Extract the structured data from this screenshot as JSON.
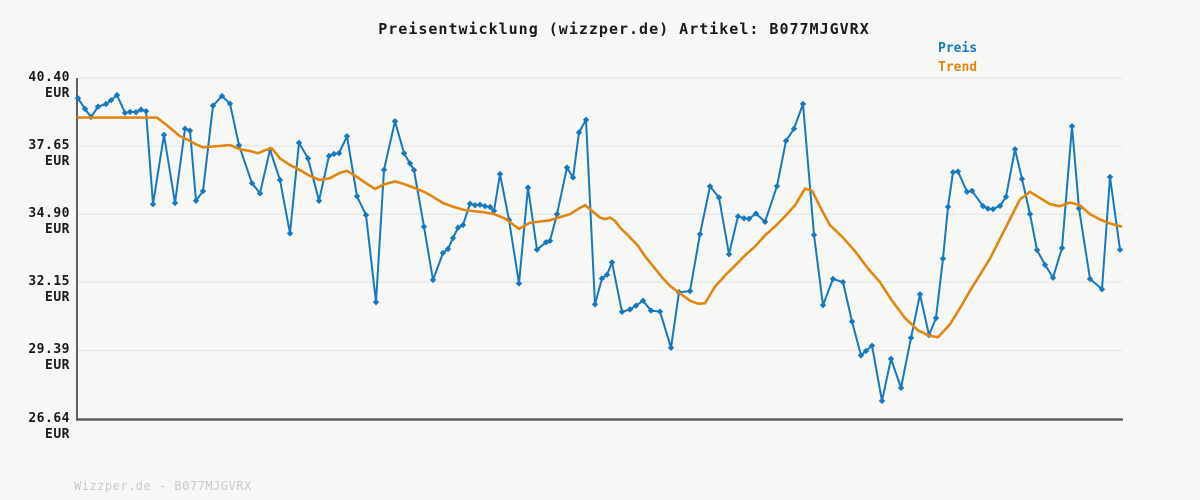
{
  "title": "Preisentwicklung (wizzper.de) Artikel: B077MJGVRX",
  "legend": {
    "preis": "Preis",
    "trend": "Trend"
  },
  "footer": "Wizzper.de - B077MJGVRX",
  "colors": {
    "preis": "#1878be",
    "trend": "#e1870f",
    "grid": "#e6e6e6",
    "axis": "#5f5f5f",
    "background": "#f7f7f6",
    "title_text": "#1a1a1a",
    "tick_text": "#1a1a1a",
    "footer_text": "#c9c9c9"
  },
  "chart_data": {
    "type": "line",
    "title": "Preisentwicklung (wizzper.de) Artikel: B077MJGVRX",
    "xlabel": "",
    "ylabel": "EUR",
    "x_axis_note": "time axis, unlabeled in chart; x given as plot pixel position",
    "ylim": [
      26.64,
      40.4
    ],
    "grid": "horizontal",
    "legend_position": "top-right",
    "yticks": [
      "40.40 EUR",
      "37.65 EUR",
      "34.90 EUR",
      "32.15 EUR",
      "29.39 EUR",
      "26.64 EUR"
    ],
    "ytick_values": [
      40.4,
      37.65,
      34.9,
      32.15,
      29.39,
      26.64
    ],
    "series": [
      {
        "name": "Preis",
        "color": "#1878be",
        "marker": "diamond",
        "line_width": 2,
        "points": [
          [
            78,
            39.58
          ],
          [
            85,
            39.15
          ],
          [
            91,
            38.82
          ],
          [
            98,
            39.24
          ],
          [
            106,
            39.35
          ],
          [
            111,
            39.5
          ],
          [
            117,
            39.71
          ],
          [
            125,
            38.99
          ],
          [
            130,
            39.03
          ],
          [
            136,
            39.02
          ],
          [
            141,
            39.12
          ],
          [
            146,
            39.06
          ],
          [
            153,
            35.3
          ],
          [
            164,
            38.1
          ],
          [
            175,
            35.35
          ],
          [
            185,
            38.35
          ],
          [
            190,
            38.27
          ],
          [
            196,
            35.44
          ],
          [
            203,
            35.83
          ],
          [
            213,
            39.28
          ],
          [
            222,
            39.67
          ],
          [
            230,
            39.36
          ],
          [
            239,
            37.68
          ],
          [
            252,
            36.15
          ],
          [
            260,
            35.74
          ],
          [
            270,
            37.5
          ],
          [
            280,
            36.28
          ],
          [
            290,
            34.12
          ],
          [
            299,
            37.78
          ],
          [
            308,
            37.15
          ],
          [
            319,
            35.44
          ],
          [
            329,
            37.25
          ],
          [
            334,
            37.33
          ],
          [
            339,
            37.36
          ],
          [
            347,
            38.05
          ],
          [
            357,
            35.62
          ],
          [
            366,
            34.86
          ],
          [
            376,
            31.34
          ],
          [
            384,
            36.69
          ],
          [
            395,
            38.65
          ],
          [
            404,
            37.36
          ],
          [
            410,
            36.95
          ],
          [
            414,
            36.68
          ],
          [
            424,
            34.39
          ],
          [
            433,
            32.24
          ],
          [
            443,
            33.33
          ],
          [
            448,
            33.49
          ],
          [
            453,
            33.93
          ],
          [
            458,
            34.35
          ],
          [
            463,
            34.46
          ],
          [
            470,
            35.32
          ],
          [
            475,
            35.26
          ],
          [
            480,
            35.28
          ],
          [
            485,
            35.22
          ],
          [
            490,
            35.19
          ],
          [
            494,
            35.03
          ],
          [
            500,
            36.52
          ],
          [
            509,
            34.66
          ],
          [
            519,
            32.1
          ],
          [
            528,
            35.97
          ],
          [
            537,
            33.46
          ],
          [
            546,
            33.76
          ],
          [
            550,
            33.82
          ],
          [
            557,
            34.9
          ],
          [
            567,
            36.78
          ],
          [
            573,
            36.38
          ],
          [
            579,
            38.2
          ],
          [
            586,
            38.71
          ],
          [
            595,
            31.25
          ],
          [
            602,
            32.3
          ],
          [
            607,
            32.45
          ],
          [
            612,
            32.95
          ],
          [
            622,
            30.95
          ],
          [
            630,
            31.05
          ],
          [
            636,
            31.2
          ],
          [
            643,
            31.4
          ],
          [
            651,
            31.0
          ],
          [
            660,
            30.96
          ],
          [
            671,
            29.5
          ],
          [
            679,
            31.74
          ],
          [
            690,
            31.79
          ],
          [
            700,
            34.09
          ],
          [
            710,
            36.02
          ],
          [
            719,
            35.57
          ],
          [
            729,
            33.28
          ],
          [
            738,
            34.81
          ],
          [
            744,
            34.73
          ],
          [
            749,
            34.71
          ],
          [
            756,
            34.92
          ],
          [
            765,
            34.59
          ],
          [
            777,
            36.03
          ],
          [
            786,
            37.86
          ],
          [
            794,
            38.35
          ],
          [
            803,
            39.35
          ],
          [
            814,
            34.06
          ],
          [
            823,
            31.22
          ],
          [
            833,
            32.28
          ],
          [
            843,
            32.15
          ],
          [
            852,
            30.56
          ],
          [
            861,
            29.19
          ],
          [
            866,
            29.37
          ],
          [
            872,
            29.58
          ],
          [
            882,
            27.35
          ],
          [
            891,
            29.05
          ],
          [
            901,
            27.88
          ],
          [
            911,
            29.9
          ],
          [
            920,
            31.66
          ],
          [
            929,
            30.01
          ],
          [
            936,
            30.7
          ],
          [
            943,
            33.1
          ],
          [
            948,
            35.19
          ],
          [
            953,
            36.59
          ],
          [
            958,
            36.62
          ],
          [
            967,
            35.8
          ],
          [
            972,
            35.84
          ],
          [
            983,
            35.22
          ],
          [
            988,
            35.12
          ],
          [
            993,
            35.1
          ],
          [
            1000,
            35.23
          ],
          [
            1006,
            35.6
          ],
          [
            1015,
            37.52
          ],
          [
            1022,
            36.32
          ],
          [
            1030,
            34.9
          ],
          [
            1037,
            33.45
          ],
          [
            1045,
            32.85
          ],
          [
            1053,
            32.33
          ],
          [
            1062,
            33.53
          ],
          [
            1072,
            38.45
          ],
          [
            1079,
            35.13
          ],
          [
            1090,
            32.28
          ],
          [
            1102,
            31.86
          ],
          [
            1110,
            36.4
          ],
          [
            1120,
            33.46
          ]
        ]
      },
      {
        "name": "Trend",
        "color": "#e1870f",
        "marker": "none",
        "line_width": 2.6,
        "points": [
          [
            78,
            38.8
          ],
          [
            100,
            38.8
          ],
          [
            120,
            38.8
          ],
          [
            140,
            38.8
          ],
          [
            157,
            38.8
          ],
          [
            165,
            38.55
          ],
          [
            172,
            38.32
          ],
          [
            180,
            38.05
          ],
          [
            188,
            37.9
          ],
          [
            196,
            37.72
          ],
          [
            203,
            37.6
          ],
          [
            213,
            37.63
          ],
          [
            222,
            37.66
          ],
          [
            230,
            37.69
          ],
          [
            240,
            37.52
          ],
          [
            250,
            37.45
          ],
          [
            258,
            37.36
          ],
          [
            266,
            37.5
          ],
          [
            272,
            37.55
          ],
          [
            280,
            37.15
          ],
          [
            290,
            36.88
          ],
          [
            300,
            36.68
          ],
          [
            310,
            36.44
          ],
          [
            320,
            36.28
          ],
          [
            330,
            36.35
          ],
          [
            339,
            36.55
          ],
          [
            347,
            36.65
          ],
          [
            357,
            36.4
          ],
          [
            366,
            36.15
          ],
          [
            375,
            35.92
          ],
          [
            384,
            36.1
          ],
          [
            395,
            36.22
          ],
          [
            405,
            36.1
          ],
          [
            415,
            35.95
          ],
          [
            424,
            35.8
          ],
          [
            433,
            35.6
          ],
          [
            443,
            35.35
          ],
          [
            453,
            35.2
          ],
          [
            463,
            35.08
          ],
          [
            473,
            35.02
          ],
          [
            483,
            34.98
          ],
          [
            494,
            34.9
          ],
          [
            505,
            34.72
          ],
          [
            519,
            34.3
          ],
          [
            530,
            34.55
          ],
          [
            540,
            34.6
          ],
          [
            550,
            34.65
          ],
          [
            560,
            34.78
          ],
          [
            570,
            34.9
          ],
          [
            580,
            35.15
          ],
          [
            585,
            35.26
          ],
          [
            590,
            35.1
          ],
          [
            600,
            34.76
          ],
          [
            605,
            34.7
          ],
          [
            610,
            34.76
          ],
          [
            615,
            34.63
          ],
          [
            620,
            34.36
          ],
          [
            630,
            33.96
          ],
          [
            638,
            33.62
          ],
          [
            645,
            33.2
          ],
          [
            655,
            32.7
          ],
          [
            663,
            32.3
          ],
          [
            670,
            32.0
          ],
          [
            680,
            31.7
          ],
          [
            690,
            31.4
          ],
          [
            698,
            31.28
          ],
          [
            705,
            31.3
          ],
          [
            715,
            31.97
          ],
          [
            725,
            32.42
          ],
          [
            735,
            32.82
          ],
          [
            745,
            33.23
          ],
          [
            755,
            33.59
          ],
          [
            765,
            34.04
          ],
          [
            775,
            34.4
          ],
          [
            785,
            34.81
          ],
          [
            795,
            35.25
          ],
          [
            805,
            35.93
          ],
          [
            812,
            35.85
          ],
          [
            820,
            35.2
          ],
          [
            830,
            34.45
          ],
          [
            843,
            33.95
          ],
          [
            855,
            33.4
          ],
          [
            868,
            32.7
          ],
          [
            880,
            32.15
          ],
          [
            892,
            31.4
          ],
          [
            905,
            30.7
          ],
          [
            918,
            30.2
          ],
          [
            930,
            29.98
          ],
          [
            938,
            29.92
          ],
          [
            950,
            30.45
          ],
          [
            960,
            31.1
          ],
          [
            970,
            31.8
          ],
          [
            980,
            32.45
          ],
          [
            990,
            33.1
          ],
          [
            1000,
            33.9
          ],
          [
            1010,
            34.7
          ],
          [
            1020,
            35.5
          ],
          [
            1030,
            35.8
          ],
          [
            1040,
            35.55
          ],
          [
            1050,
            35.3
          ],
          [
            1060,
            35.22
          ],
          [
            1070,
            35.37
          ],
          [
            1080,
            35.25
          ],
          [
            1090,
            34.9
          ],
          [
            1100,
            34.68
          ],
          [
            1110,
            34.52
          ],
          [
            1121,
            34.4
          ]
        ]
      }
    ]
  }
}
